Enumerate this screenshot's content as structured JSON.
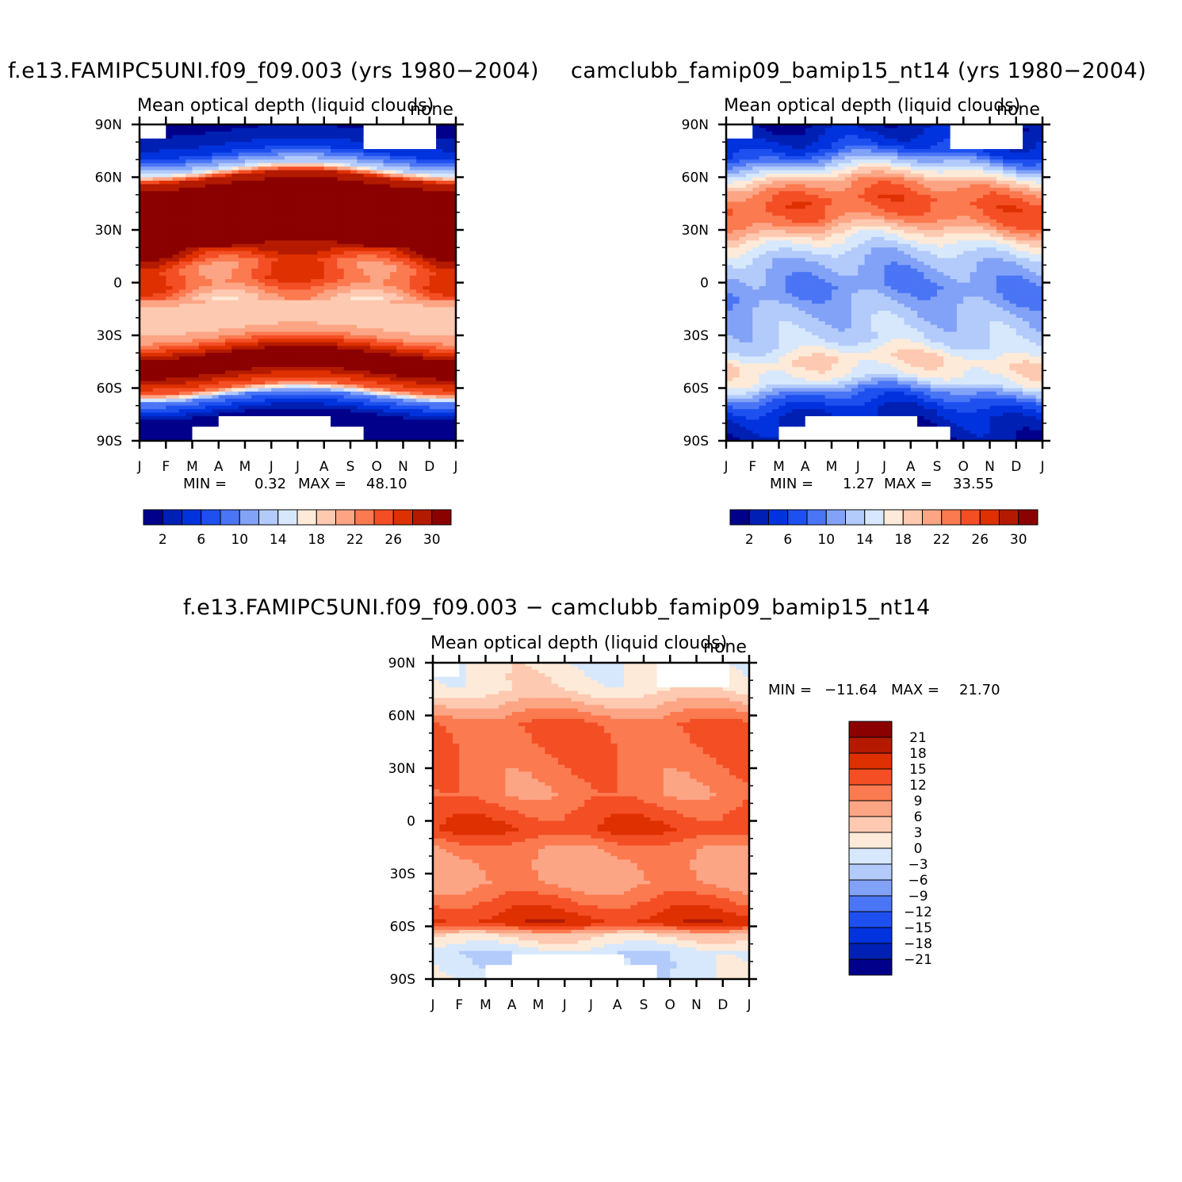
{
  "chart_data": [
    {
      "id": "panel_a",
      "type": "heatmap",
      "title": "f.e13.FAMIPC5UNI.f09_f09.003 (yrs 1980−2004)",
      "subtitle": "Mean optical depth (liquid clouds)",
      "units": "none",
      "x_tick_labels": [
        "J",
        "F",
        "M",
        "A",
        "M",
        "J",
        "J",
        "A",
        "S",
        "O",
        "N",
        "D",
        "J"
      ],
      "y_tick_labels": [
        "90N",
        "60N",
        "30N",
        "0",
        "30S",
        "60S",
        "90S"
      ],
      "ylim": [
        -90,
        90
      ],
      "min_label": "MIN =",
      "min_value": "0.32",
      "max_label": "MAX =",
      "max_value": "48.10",
      "colorbar_labels": [
        "2",
        "6",
        "10",
        "14",
        "18",
        "22",
        "26",
        "30"
      ],
      "colorbar_levels": [
        2,
        4,
        6,
        8,
        10,
        12,
        14,
        16,
        18,
        20,
        22,
        24,
        26,
        28,
        30
      ],
      "profile_lat": [
        -90,
        -75,
        -65,
        -60,
        -50,
        -40,
        -30,
        -20,
        -10,
        0,
        10,
        20,
        30,
        40,
        50,
        60,
        65,
        75,
        90
      ],
      "profile_values": [
        1,
        2,
        10,
        24,
        31,
        30,
        21,
        18,
        20,
        25,
        24,
        30,
        33,
        34,
        33,
        28,
        14,
        5,
        1
      ]
    },
    {
      "id": "panel_b",
      "type": "heatmap",
      "title": "camclubb_famip09_bamip15_nt14 (yrs 1980−2004)",
      "subtitle": "Mean optical depth (liquid clouds)",
      "units": "none",
      "x_tick_labels": [
        "J",
        "F",
        "M",
        "A",
        "M",
        "J",
        "J",
        "A",
        "S",
        "O",
        "N",
        "D",
        "J"
      ],
      "y_tick_labels": [
        "90N",
        "60N",
        "30N",
        "0",
        "30S",
        "60S",
        "90S"
      ],
      "ylim": [
        -90,
        90
      ],
      "min_label": "MIN =",
      "min_value": "1.27",
      "max_label": "MAX =",
      "max_value": "33.55",
      "colorbar_labels": [
        "2",
        "6",
        "10",
        "14",
        "18",
        "22",
        "26",
        "30"
      ],
      "colorbar_levels": [
        2,
        4,
        6,
        8,
        10,
        12,
        14,
        16,
        18,
        20,
        22,
        24,
        26,
        28,
        30
      ],
      "profile_lat": [
        -90,
        -75,
        -65,
        -55,
        -45,
        -35,
        -25,
        -15,
        -5,
        5,
        15,
        25,
        35,
        45,
        55,
        65,
        75,
        90
      ],
      "profile_values": [
        2,
        4,
        8,
        16,
        18,
        14,
        13,
        12,
        10,
        11,
        13,
        17,
        23,
        25,
        22,
        14,
        6,
        2
      ]
    },
    {
      "id": "panel_diff",
      "type": "heatmap",
      "title": "f.e13.FAMIPC5UNI.f09_f09.003 − camclubb_famip09_bamip15_nt14",
      "subtitle": "Mean optical depth (liquid clouds)",
      "units": "none",
      "x_tick_labels": [
        "J",
        "F",
        "M",
        "A",
        "M",
        "J",
        "J",
        "A",
        "S",
        "O",
        "N",
        "D",
        "J"
      ],
      "y_tick_labels": [
        "90N",
        "60N",
        "30N",
        "0",
        "30S",
        "60S",
        "90S"
      ],
      "ylim": [
        -90,
        90
      ],
      "min_label": "MIN =",
      "min_value": "−11.64",
      "max_label": "MAX =",
      "max_value": "21.70",
      "colorbar_labels": [
        "21",
        "18",
        "15",
        "12",
        "9",
        "6",
        "3",
        "0",
        "−3",
        "−6",
        "−9",
        "−12",
        "−15",
        "−18",
        "−21"
      ],
      "colorbar_levels": [
        -21,
        -18,
        -15,
        -12,
        -9,
        -6,
        -3,
        0,
        3,
        6,
        9,
        12,
        15,
        18,
        21
      ],
      "profile_lat": [
        -90,
        -75,
        -65,
        -58,
        -45,
        -35,
        -25,
        -15,
        -5,
        5,
        15,
        30,
        45,
        55,
        65,
        75,
        90
      ],
      "profile_values": [
        -1,
        -2,
        4,
        17,
        12,
        8,
        8,
        10,
        15,
        13,
        10,
        11,
        12,
        12,
        7,
        2,
        1
      ]
    }
  ],
  "colors": {
    "positive_scale": [
      "#00008b",
      "#0020b4",
      "#0033dd",
      "#1e50f0",
      "#4a75f5",
      "#82a2f7",
      "#b3cbfb",
      "#d7e8fc",
      "#feead8",
      "#fdc9b0",
      "#fca585",
      "#fc7a50",
      "#f44e25",
      "#de3000",
      "#b31a00",
      "#8b0000"
    ],
    "missing": "#ffffff"
  }
}
